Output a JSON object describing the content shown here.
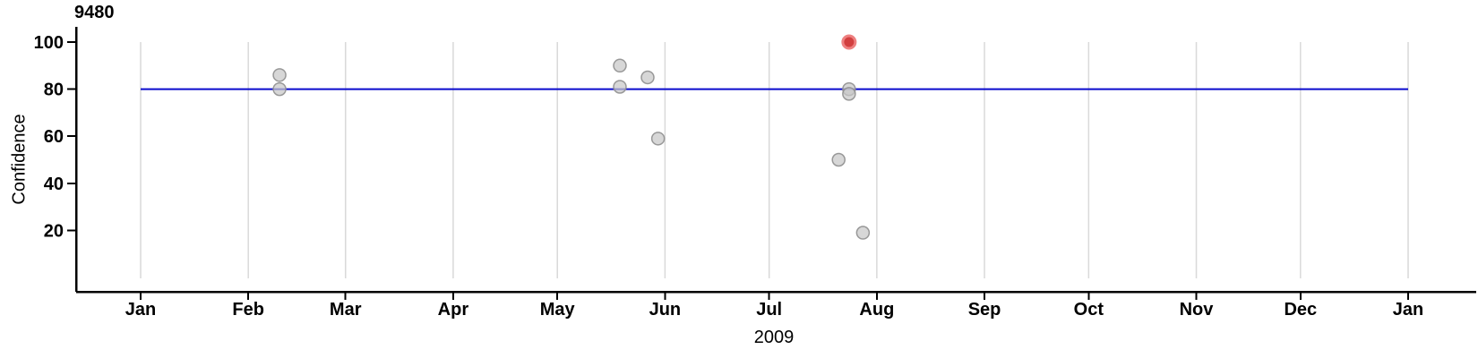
{
  "chart": {
    "title": "9480",
    "ylabel": "Confidence",
    "xlabel": "2009"
  },
  "chart_data": {
    "type": "scatter",
    "title": "9480",
    "xlabel": "2009",
    "ylabel": "Confidence",
    "x_axis": {
      "start": "2009-01-01",
      "end": "2010-01-01",
      "tick_labels": [
        "Jan",
        "Feb",
        "Mar",
        "Apr",
        "May",
        "Jun",
        "Jul",
        "Aug",
        "Sep",
        "Oct",
        "Nov",
        "Dec",
        "Jan"
      ],
      "grid": true
    },
    "y_axis": {
      "ticks": [
        20,
        40,
        60,
        80,
        100
      ],
      "range": [
        0,
        100
      ],
      "grid": false
    },
    "legend": "none",
    "reference_line": {
      "y": 80
    },
    "points": [
      {
        "date": "2009-02-10",
        "confidence": 86,
        "highlight": false
      },
      {
        "date": "2009-02-10",
        "confidence": 80,
        "highlight": false
      },
      {
        "date": "2009-05-19",
        "confidence": 90,
        "highlight": false
      },
      {
        "date": "2009-05-19",
        "confidence": 81,
        "highlight": false
      },
      {
        "date": "2009-05-27",
        "confidence": 85,
        "highlight": false
      },
      {
        "date": "2009-05-30",
        "confidence": 59,
        "highlight": false
      },
      {
        "date": "2009-07-24",
        "confidence": 80,
        "highlight": false
      },
      {
        "date": "2009-07-24",
        "confidence": 78,
        "highlight": false
      },
      {
        "date": "2009-07-21",
        "confidence": 50,
        "highlight": false
      },
      {
        "date": "2009-07-28",
        "confidence": 19,
        "highlight": false
      },
      {
        "date": "2009-07-24",
        "confidence": 100,
        "highlight": true
      }
    ]
  },
  "colors": {
    "axis": "#000000",
    "gridline": "#d9d9d9",
    "reference_line": "#0a0acd",
    "point_fill": "#c8c8c8",
    "point_stroke": "#8f8f8f",
    "highlight_fill": "#d23f3f",
    "highlight_stroke": "#ee8080"
  }
}
